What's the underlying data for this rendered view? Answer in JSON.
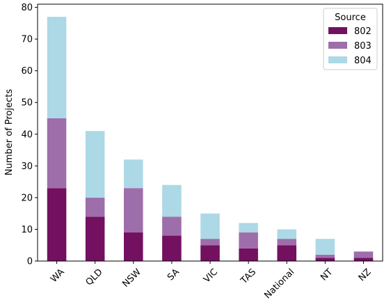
{
  "chart_data": {
    "type": "bar",
    "stacked": true,
    "categories": [
      "WA",
      "QLD",
      "NSW",
      "SA",
      "VIC",
      "TAS",
      "National",
      "NT",
      "NZ"
    ],
    "series": [
      {
        "name": "802",
        "values": [
          23,
          14,
          9,
          8,
          5,
          4,
          5,
          1,
          1
        ],
        "color": "#731060"
      },
      {
        "name": "803",
        "values": [
          22,
          6,
          14,
          6,
          2,
          5,
          2,
          1,
          2
        ],
        "color": "#9e6eab"
      },
      {
        "name": "804",
        "values": [
          32,
          21,
          9,
          10,
          8,
          3,
          3,
          5,
          0
        ],
        "color": "#add8e6"
      }
    ],
    "title": "",
    "xlabel": "",
    "ylabel": "Number of Projects",
    "ylim": [
      0,
      81
    ],
    "yticks": [
      0,
      10,
      20,
      30,
      40,
      50,
      60,
      70,
      80
    ],
    "grid": false,
    "legend": {
      "title": "Source",
      "placement": "top-right"
    }
  }
}
